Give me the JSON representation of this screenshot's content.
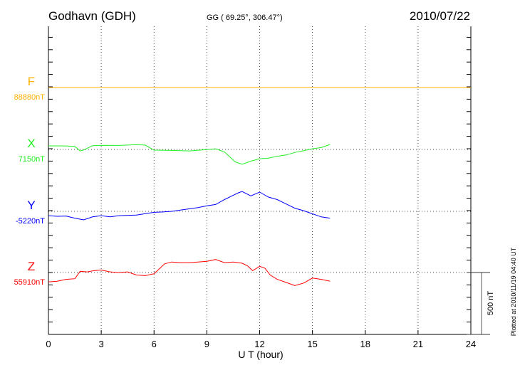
{
  "header": {
    "station": "Godhavn (GDH)",
    "coords": "GG ( 69.25°, 306.47°)",
    "date": "2010/07/22"
  },
  "footer": {
    "plotted": "Plotted at 2010/11/19 04:40 UT",
    "scale_label": "500 nT"
  },
  "chart_data": {
    "type": "line",
    "xlabel": "U T (hour)",
    "xlim": [
      0,
      24
    ],
    "xticks": [
      "0",
      "3",
      "6",
      "9",
      "12",
      "15",
      "18",
      "21",
      "24"
    ],
    "scale_nT": 500,
    "grid": true,
    "series": [
      {
        "name": "F",
        "baseline_label": "88880nT",
        "color": "#ffb000",
        "x": [
          0,
          24
        ],
        "values": [
          0,
          0
        ]
      },
      {
        "name": "X",
        "baseline_label": "7150nT",
        "color": "#22ee22",
        "x": [
          0,
          0.5,
          1,
          1.5,
          1.8,
          2,
          2.5,
          3,
          4,
          5,
          5.5,
          6,
          7,
          8,
          9,
          9.5,
          10,
          10.3,
          10.6,
          11,
          11.5,
          12,
          12.5,
          13,
          13.5,
          14,
          14.5,
          15,
          15.5,
          16
        ],
        "values": [
          29,
          29,
          28,
          25,
          -12,
          -5,
          30,
          33,
          32,
          38,
          35,
          -6,
          -8,
          -12,
          -2,
          5,
          -20,
          -60,
          -100,
          -120,
          -95,
          -75,
          -70,
          -55,
          -45,
          -25,
          -10,
          5,
          15,
          40
        ]
      },
      {
        "name": "Y",
        "baseline_label": "-5220nT",
        "color": "#0000ff",
        "x": [
          0,
          0.5,
          1,
          1.5,
          2,
          2.5,
          3,
          3.5,
          4,
          5,
          6,
          6.5,
          7,
          8,
          8.5,
          9,
          9.5,
          10,
          10.5,
          10.8,
          11,
          11.5,
          12,
          12.5,
          13,
          13.5,
          14,
          14.5,
          15,
          15.5,
          16
        ],
        "values": [
          -35,
          -40,
          -38,
          -55,
          -69,
          -45,
          -35,
          -45,
          -35,
          -30,
          -8,
          -5,
          0,
          20,
          30,
          45,
          55,
          95,
          130,
          150,
          160,
          125,
          155,
          115,
          95,
          60,
          25,
          5,
          -20,
          -45,
          -55
        ]
      },
      {
        "name": "Z",
        "baseline_label": "55910nT",
        "color": "#ff0000",
        "x": [
          0,
          0.5,
          1,
          1.5,
          1.8,
          2.2,
          2.6,
          3,
          3.5,
          4,
          4.5,
          5,
          5.5,
          6,
          6.3,
          6.6,
          7,
          7.5,
          8,
          8.5,
          9,
          9.5,
          10,
          10.5,
          11,
          11.3,
          11.6,
          12,
          12.3,
          12.6,
          13,
          13.5,
          14,
          14.5,
          15,
          15.5,
          16
        ],
        "values": [
          -75,
          -70,
          -55,
          -50,
          10,
          5,
          15,
          20,
          5,
          0,
          5,
          -20,
          -25,
          -10,
          30,
          70,
          85,
          80,
          80,
          85,
          90,
          105,
          80,
          85,
          75,
          55,
          15,
          50,
          35,
          -20,
          -55,
          -80,
          -105,
          -85,
          -45,
          -55,
          -70
        ]
      }
    ]
  }
}
